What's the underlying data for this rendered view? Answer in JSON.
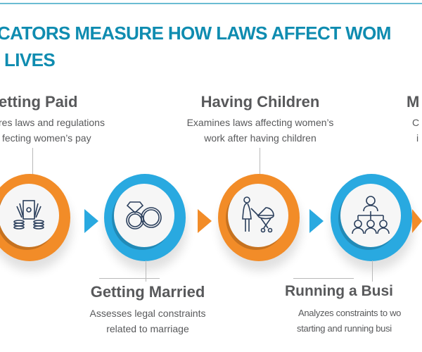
{
  "title": {
    "line1": "CATORS MEASURE HOW LAWS AFFECT WOM",
    "line2": "LIVES"
  },
  "steps": [
    {
      "heading": "etting Paid",
      "desc1": "res laws and regulations",
      "desc2": "fecting women’s pay",
      "icon": "money-icon",
      "color": "#f28c28"
    },
    {
      "heading": "Getting Married",
      "desc1": "Assesses legal constraints",
      "desc2": "related to marriage",
      "icon": "rings-icon",
      "color": "#29a9e0"
    },
    {
      "heading": "Having Children",
      "desc1": "Examines laws affecting women’s",
      "desc2": "work after having children",
      "icon": "mother-stroller-icon",
      "color": "#f28c28"
    },
    {
      "heading": "Running a Busi",
      "desc1": "Analyzes constraints to wo",
      "desc2": "starting and running busi",
      "icon": "org-chart-icon",
      "color": "#29a9e0"
    },
    {
      "heading": "M",
      "desc1": "C",
      "desc2": "i"
    }
  ]
}
